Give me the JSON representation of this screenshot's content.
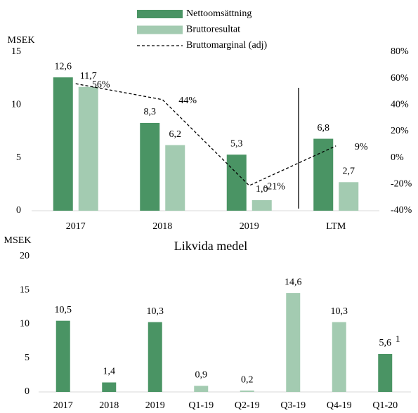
{
  "chart_data": [
    {
      "type": "bar",
      "y_label": "MSEK",
      "categories": [
        "2017",
        "2018",
        "2019",
        "LTM"
      ],
      "series": [
        {
          "name": "Nettoomsättning",
          "color": "#4a9464",
          "values": [
            12.6,
            8.3,
            5.3,
            6.8
          ],
          "value_labels": [
            "12,6",
            "8,3",
            "5,3",
            "6,8"
          ]
        },
        {
          "name": "Bruttoresultat",
          "color": "#a3cbb1",
          "values": [
            11.7,
            6.2,
            1.0,
            2.7
          ],
          "value_labels": [
            "11,7",
            "6,2",
            "1,0",
            "2,7"
          ]
        },
        {
          "name": "Bruttomarginal (adj)",
          "type": "line",
          "axis": "y2",
          "color": "#000000",
          "line_style": "dashed",
          "values": [
            56,
            44,
            -21,
            9
          ],
          "value_labels": [
            "56%",
            "44%",
            "-21%",
            "9%"
          ]
        }
      ],
      "ylim": [
        0,
        15
      ],
      "yticks": [
        0,
        5,
        10,
        15
      ],
      "y2lim": [
        -40,
        80
      ],
      "y2ticks": [
        {
          "value": -40,
          "label": "-40%"
        },
        {
          "value": -20,
          "label": "-20%"
        },
        {
          "value": 0,
          "label": "0%"
        },
        {
          "value": 20,
          "label": "20%"
        },
        {
          "value": 40,
          "label": "40%"
        },
        {
          "value": 60,
          "label": "60%"
        },
        {
          "value": 80,
          "label": "80%"
        }
      ]
    },
    {
      "type": "bar",
      "title": "Likvida medel",
      "y_label": "MSEK",
      "categories": [
        "2017",
        "2018",
        "2019",
        "Q1-19",
        "Q2-19",
        "Q3-19",
        "Q4-19",
        "Q1-20"
      ],
      "values": [
        10.5,
        1.4,
        10.3,
        0.9,
        0.2,
        14.6,
        10.3,
        5.6
      ],
      "value_labels": [
        "10,5",
        "1,4",
        "10,3",
        "0,9",
        "0,2",
        "14,6",
        "10,3",
        "5,6"
      ],
      "colors": [
        "#4a9464",
        "#4a9464",
        "#4a9464",
        "#a3cbb1",
        "#a3cbb1",
        "#a3cbb1",
        "#a3cbb1",
        "#4a9464"
      ],
      "annotation": "1",
      "ylim": [
        0,
        20
      ],
      "yticks": [
        0,
        5,
        10,
        15,
        20
      ]
    }
  ]
}
